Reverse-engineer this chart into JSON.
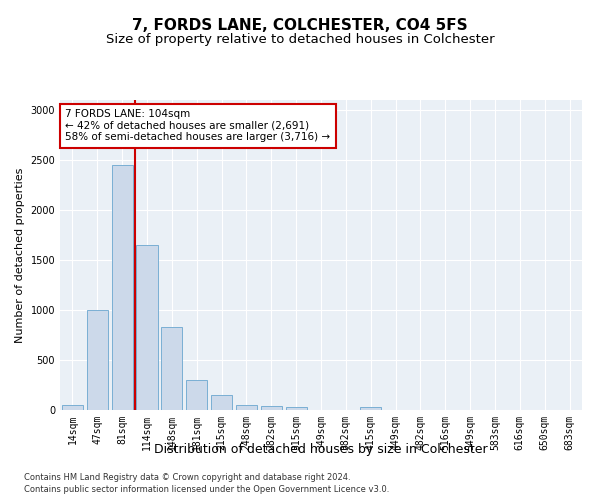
{
  "title1": "7, FORDS LANE, COLCHESTER, CO4 5FS",
  "title2": "Size of property relative to detached houses in Colchester",
  "xlabel": "Distribution of detached houses by size in Colchester",
  "ylabel": "Number of detached properties",
  "categories": [
    "14sqm",
    "47sqm",
    "81sqm",
    "114sqm",
    "148sqm",
    "181sqm",
    "215sqm",
    "248sqm",
    "282sqm",
    "315sqm",
    "349sqm",
    "382sqm",
    "415sqm",
    "449sqm",
    "482sqm",
    "516sqm",
    "549sqm",
    "583sqm",
    "616sqm",
    "650sqm",
    "683sqm"
  ],
  "values": [
    50,
    1000,
    2450,
    1650,
    830,
    300,
    150,
    50,
    40,
    30,
    5,
    5,
    30,
    5,
    0,
    0,
    0,
    0,
    0,
    0,
    0
  ],
  "bar_color": "#ccd9ea",
  "bar_edge_color": "#7aafd4",
  "vline_color": "#cc0000",
  "vline_x_index": 2.5,
  "annotation_text": "7 FORDS LANE: 104sqm\n← 42% of detached houses are smaller (2,691)\n58% of semi-detached houses are larger (3,716) →",
  "annotation_box_facecolor": "#ffffff",
  "annotation_box_edgecolor": "#cc0000",
  "ylim": [
    0,
    3100
  ],
  "yticks": [
    0,
    500,
    1000,
    1500,
    2000,
    2500,
    3000
  ],
  "footer1": "Contains HM Land Registry data © Crown copyright and database right 2024.",
  "footer2": "Contains public sector information licensed under the Open Government Licence v3.0.",
  "bg_color": "#ffffff",
  "plot_bg_color": "#eaf0f6",
  "grid_color": "#ffffff",
  "title1_fontsize": 11,
  "title2_fontsize": 9.5,
  "xlabel_fontsize": 9,
  "ylabel_fontsize": 8,
  "tick_fontsize": 7,
  "footer_fontsize": 6,
  "annotation_fontsize": 7.5
}
